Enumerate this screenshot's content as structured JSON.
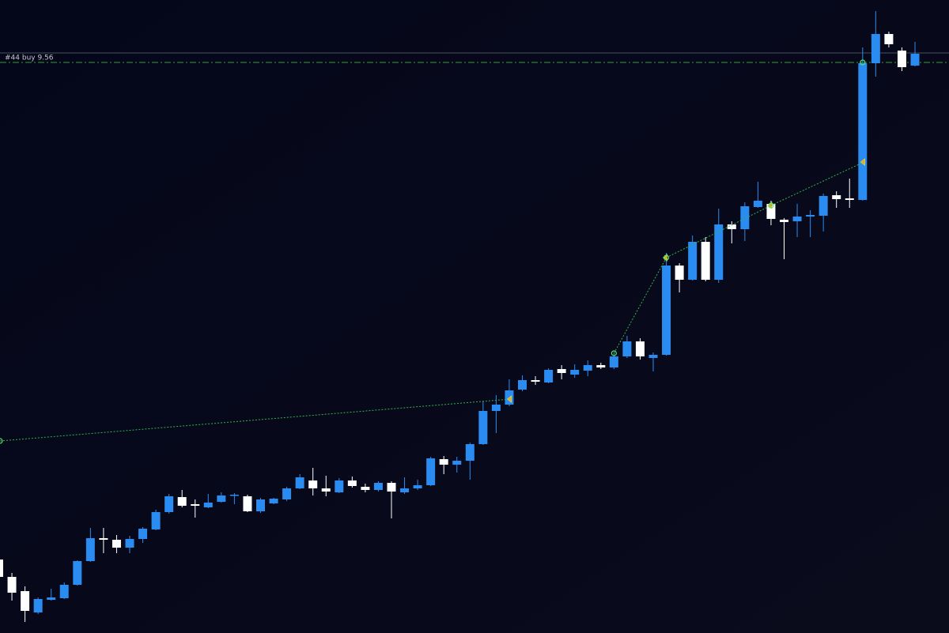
{
  "chart_data": {
    "type": "candlestick",
    "ylim": [
      8.838,
      9.639
    ],
    "xlim": [
      -0.5,
      72
    ],
    "up_color": "#2a8cf0",
    "down_color": "#ffffff",
    "open": [
      8.931,
      8.909,
      8.891,
      8.864,
      8.88,
      8.882,
      8.899,
      8.929,
      8.958,
      8.956,
      8.946,
      8.957,
      8.969,
      8.991,
      9.01,
      9.001,
      8.997,
      9.004,
      9.012,
      9.011,
      8.992,
      9.002,
      9.007,
      9.021,
      9.031,
      9.021,
      9.016,
      9.031,
      9.023,
      9.019,
      9.028,
      9.016,
      9.021,
      9.025,
      9.058,
      9.051,
      9.056,
      9.077,
      9.119,
      9.127,
      9.146,
      9.158,
      9.155,
      9.172,
      9.165,
      9.17,
      9.177,
      9.174,
      9.188,
      9.207,
      9.186,
      9.19,
      9.303,
      9.285,
      9.333,
      9.285,
      9.355,
      9.349,
      9.377,
      9.381,
      9.361,
      9.359,
      9.365,
      9.366,
      9.392,
      9.388,
      9.386,
      9.559,
      9.596,
      9.575,
      9.556
    ],
    "high": [
      8.934,
      8.914,
      8.897,
      8.883,
      8.894,
      8.902,
      8.93,
      8.971,
      8.971,
      8.962,
      8.961,
      8.972,
      8.994,
      9.014,
      9.019,
      9.007,
      9.014,
      9.016,
      9.015,
      9.013,
      9.009,
      9.009,
      9.023,
      9.039,
      9.047,
      9.037,
      9.034,
      9.036,
      9.027,
      9.03,
      9.03,
      9.035,
      9.032,
      9.061,
      9.062,
      9.061,
      9.079,
      9.131,
      9.139,
      9.159,
      9.164,
      9.163,
      9.173,
      9.177,
      9.178,
      9.183,
      9.18,
      9.193,
      9.214,
      9.211,
      9.193,
      9.319,
      9.306,
      9.341,
      9.339,
      9.375,
      9.359,
      9.383,
      9.409,
      9.385,
      9.363,
      9.381,
      9.373,
      9.394,
      9.397,
      9.413,
      9.579,
      9.625,
      9.599,
      9.579,
      9.586
    ],
    "low": [
      8.904,
      8.879,
      8.852,
      8.862,
      8.879,
      8.881,
      8.898,
      8.928,
      8.939,
      8.939,
      8.939,
      8.952,
      8.968,
      8.989,
      8.997,
      8.984,
      8.996,
      9.003,
      9.001,
      8.991,
      8.99,
      9.001,
      9.005,
      9.02,
      9.012,
      9.011,
      9.015,
      9.022,
      9.016,
      9.017,
      8.983,
      9.014,
      9.019,
      9.024,
      9.039,
      9.041,
      9.032,
      9.076,
      9.091,
      9.125,
      9.144,
      9.152,
      9.154,
      9.159,
      9.161,
      9.163,
      9.172,
      9.172,
      9.186,
      9.184,
      9.169,
      9.189,
      9.269,
      9.284,
      9.283,
      9.281,
      9.331,
      9.334,
      9.376,
      9.354,
      9.311,
      9.339,
      9.339,
      9.346,
      9.376,
      9.376,
      9.385,
      9.542,
      9.579,
      9.549,
      9.555
    ],
    "close": [
      8.909,
      8.889,
      8.866,
      8.881,
      8.883,
      8.899,
      8.929,
      8.958,
      8.956,
      8.946,
      8.957,
      8.97,
      8.991,
      9.011,
      8.999,
      8.999,
      9.003,
      9.012,
      9.013,
      8.992,
      9.007,
      9.008,
      9.021,
      9.035,
      9.021,
      9.017,
      9.031,
      9.024,
      9.019,
      9.028,
      9.017,
      9.021,
      9.025,
      9.059,
      9.051,
      9.056,
      9.077,
      9.119,
      9.127,
      9.145,
      9.158,
      9.156,
      9.171,
      9.167,
      9.171,
      9.177,
      9.174,
      9.188,
      9.207,
      9.188,
      9.19,
      9.303,
      9.285,
      9.333,
      9.285,
      9.355,
      9.349,
      9.378,
      9.385,
      9.362,
      9.358,
      9.365,
      9.367,
      9.391,
      9.387,
      9.386,
      9.559,
      9.596,
      9.583,
      9.554,
      9.571
    ],
    "price_line": 9.572,
    "order_line": {
      "label": "#44 buy 9.56",
      "value": 9.56,
      "color": "#3c9a3c"
    },
    "trades": [
      {
        "x": [
          0.09,
          39.1
        ],
        "y": [
          9.081,
          9.134
        ]
      },
      {
        "x": [
          47,
          51
        ],
        "y": [
          9.192,
          9.313
        ]
      },
      {
        "x": [
          51,
          59
        ],
        "y": [
          9.313,
          9.379
        ]
      },
      {
        "x": [
          59,
          66.1
        ],
        "y": [
          9.379,
          9.434
        ]
      }
    ],
    "order_marker": {
      "x": 66,
      "y": 9.56
    }
  }
}
